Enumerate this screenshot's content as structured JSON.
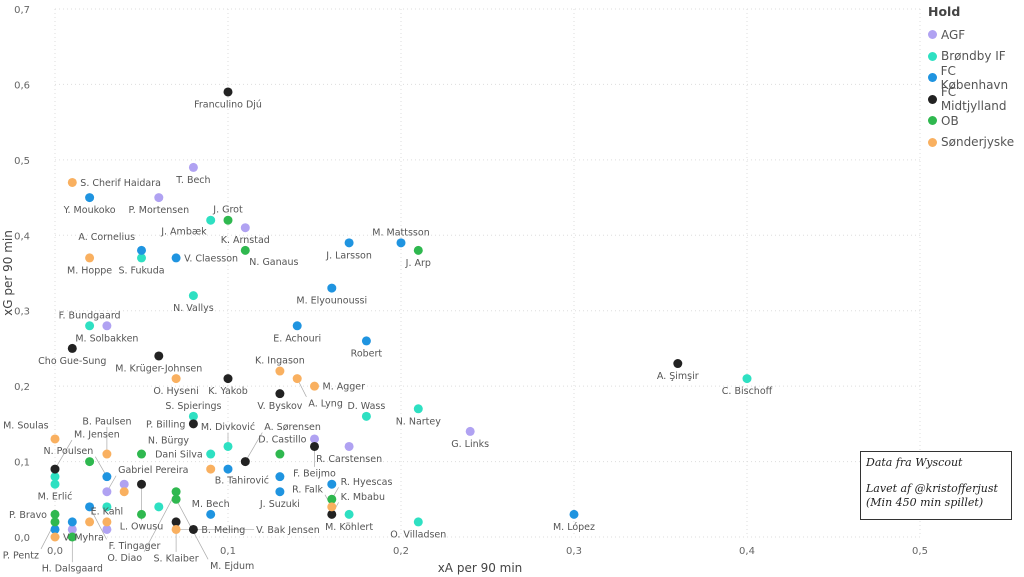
{
  "chart_data": {
    "type": "scatter",
    "xlabel": "xA per 90 min",
    "ylabel": "xG per 90 min",
    "xlim": [
      0,
      0.5
    ],
    "ylim": [
      0,
      0.7
    ],
    "xticks": [
      "0,0",
      "0,1",
      "0,2",
      "0,3",
      "0,4",
      "0,5"
    ],
    "yticks": [
      "0,0",
      "0,1",
      "0,2",
      "0,3",
      "0,4",
      "0,5",
      "0,6",
      "0,7"
    ],
    "grid": true,
    "legend": {
      "title": "Hold",
      "placement": "top-right"
    },
    "series": [
      {
        "name": "AGF",
        "color": "#b0a2f2",
        "points": [
          {
            "x": 0.08,
            "y": 0.49,
            "label": "T. Bech",
            "pos": "below"
          },
          {
            "x": 0.06,
            "y": 0.45,
            "label": "P. Mortensen",
            "pos": "below"
          },
          {
            "x": 0.11,
            "y": 0.41,
            "label": "K. Arnstad",
            "pos": "below"
          },
          {
            "x": 0.03,
            "y": 0.28,
            "label": "M. Solbakken",
            "pos": "below"
          },
          {
            "x": 0.15,
            "y": 0.13,
            "label": "D. Castillo",
            "pos": "left"
          },
          {
            "x": 0.17,
            "y": 0.12,
            "label": "R. Carstensen",
            "pos": "above"
          },
          {
            "x": 0.24,
            "y": 0.14,
            "label": "G. Links",
            "pos": "below"
          },
          {
            "x": 0.04,
            "y": 0.07,
            "label": "",
            "pos": "below"
          },
          {
            "x": 0.03,
            "y": 0.06,
            "label": "Gabriel Pereira",
            "pos": "right"
          },
          {
            "x": 0.01,
            "y": 0.01,
            "label": "",
            "pos": "below"
          },
          {
            "x": 0.03,
            "y": 0.01,
            "label": "",
            "pos": "below"
          }
        ]
      },
      {
        "name": "Brøndby IF",
        "color": "#2ee0c2",
        "points": [
          {
            "x": 0.09,
            "y": 0.42,
            "label": "J. Ambæk",
            "pos": "above"
          },
          {
            "x": 0.05,
            "y": 0.37,
            "label": "S. Fukuda",
            "pos": "below"
          },
          {
            "x": 0.08,
            "y": 0.32,
            "label": "N. Vallys",
            "pos": "below"
          },
          {
            "x": 0.02,
            "y": 0.28,
            "label": "F. Bundgaard",
            "pos": "above"
          },
          {
            "x": 0.08,
            "y": 0.16,
            "label": "S. Spierings",
            "pos": "above"
          },
          {
            "x": 0.1,
            "y": 0.12,
            "label": "M. Divković",
            "pos": "above"
          },
          {
            "x": 0.09,
            "y": 0.11,
            "label": "Dani Silva",
            "pos": "right"
          },
          {
            "x": 0.18,
            "y": 0.16,
            "label": "D. Wass",
            "pos": "above"
          },
          {
            "x": 0.21,
            "y": 0.17,
            "label": "N. Nartey",
            "pos": "below"
          },
          {
            "x": 0.4,
            "y": 0.21,
            "label": "C. Bischoff",
            "pos": "below"
          },
          {
            "x": 0.21,
            "y": 0.02,
            "label": "O. Villadsen",
            "pos": "below"
          },
          {
            "x": 0.17,
            "y": 0.03,
            "label": "M. Köhlert",
            "pos": "below"
          },
          {
            "x": 0.0,
            "y": 0.08,
            "label": "",
            "pos": "below"
          },
          {
            "x": 0.0,
            "y": 0.07,
            "label": "M. Erlić",
            "pos": "below"
          },
          {
            "x": 0.03,
            "y": 0.04,
            "label": "",
            "pos": "below"
          },
          {
            "x": 0.06,
            "y": 0.04,
            "label": "",
            "pos": "below"
          }
        ]
      },
      {
        "name": "FC København",
        "color": "#1f94e0",
        "points": [
          {
            "x": 0.02,
            "y": 0.45,
            "label": "Y. Moukoko",
            "pos": "below"
          },
          {
            "x": 0.05,
            "y": 0.38,
            "label": "A. Cornelius",
            "pos": "above"
          },
          {
            "x": 0.07,
            "y": 0.37,
            "label": "V. Claesson",
            "pos": "right"
          },
          {
            "x": 0.17,
            "y": 0.39,
            "label": "J. Larsson",
            "pos": "below"
          },
          {
            "x": 0.2,
            "y": 0.39,
            "label": "M. Mattsson",
            "pos": "above"
          },
          {
            "x": 0.16,
            "y": 0.33,
            "label": "M. Elyounoussi",
            "pos": "below"
          },
          {
            "x": 0.14,
            "y": 0.28,
            "label": "E. Achouri",
            "pos": "below"
          },
          {
            "x": 0.18,
            "y": 0.26,
            "label": "Robert",
            "pos": "below"
          },
          {
            "x": 0.1,
            "y": 0.09,
            "label": "",
            "pos": "below"
          },
          {
            "x": 0.03,
            "y": 0.08,
            "label": "N. Poulsen",
            "pos": "above"
          },
          {
            "x": 0.13,
            "y": 0.08,
            "label": "",
            "pos": "below"
          },
          {
            "x": 0.13,
            "y": 0.06,
            "label": "J. Suzuki",
            "pos": "above"
          },
          {
            "x": 0.16,
            "y": 0.07,
            "label": "",
            "pos": "below"
          },
          {
            "x": 0.09,
            "y": 0.03,
            "label": "M. Bech",
            "pos": "left"
          },
          {
            "x": 0.3,
            "y": 0.03,
            "label": "M. López",
            "pos": "below"
          },
          {
            "x": 0.02,
            "y": 0.04,
            "label": "F. Tingager",
            "pos": "right"
          },
          {
            "x": 0.01,
            "y": 0.02,
            "label": "",
            "pos": "below"
          },
          {
            "x": 0.0,
            "y": 0.01,
            "label": "",
            "pos": "below"
          }
        ]
      },
      {
        "name": "FC Midtjylland",
        "color": "#222222",
        "points": [
          {
            "x": 0.1,
            "y": 0.59,
            "label": "Franculino Djú",
            "pos": "below"
          },
          {
            "x": 0.01,
            "y": 0.25,
            "label": "Cho Gue-Sung",
            "pos": "below"
          },
          {
            "x": 0.06,
            "y": 0.24,
            "label": "M. Krüger-Johnsen",
            "pos": "above"
          },
          {
            "x": 0.1,
            "y": 0.21,
            "label": "K. Yakob",
            "pos": "below"
          },
          {
            "x": 0.13,
            "y": 0.19,
            "label": "V. Byskov",
            "pos": "below"
          },
          {
            "x": 0.36,
            "y": 0.23,
            "label": "A. Şimşir",
            "pos": "below"
          },
          {
            "x": 0.08,
            "y": 0.15,
            "label": "P. Billing",
            "pos": "left"
          },
          {
            "x": 0.11,
            "y": 0.1,
            "label": "A. Sørensen",
            "pos": "belowright"
          },
          {
            "x": 0.15,
            "y": 0.12,
            "label": "F. Beijmo",
            "pos": "below"
          },
          {
            "x": 0.0,
            "y": 0.09,
            "label": "M. Jensen",
            "pos": "belowright"
          },
          {
            "x": 0.05,
            "y": 0.07,
            "label": "L. Owusu",
            "pos": "above"
          },
          {
            "x": 0.07,
            "y": 0.02,
            "label": "S. Klaiber",
            "pos": "left"
          },
          {
            "x": 0.08,
            "y": 0.01,
            "label": "B. Meling",
            "pos": "right"
          },
          {
            "x": 0.16,
            "y": 0.03,
            "label": "K. Mbabu",
            "pos": "belowleft"
          }
        ]
      },
      {
        "name": "OB",
        "color": "#2fb84f",
        "points": [
          {
            "x": 0.1,
            "y": 0.42,
            "label": "J. Grot",
            "pos": "right"
          },
          {
            "x": 0.11,
            "y": 0.38,
            "label": "N. Ganaus",
            "pos": "below"
          },
          {
            "x": 0.21,
            "y": 0.38,
            "label": "J. Arp",
            "pos": "below"
          },
          {
            "x": 0.05,
            "y": 0.11,
            "label": "N. Bürgy",
            "pos": "above"
          },
          {
            "x": 0.02,
            "y": 0.1,
            "label": "",
            "pos": "below"
          },
          {
            "x": 0.13,
            "y": 0.11,
            "label": "",
            "pos": "below"
          },
          {
            "x": 0.07,
            "y": 0.06,
            "label": "O. Diao",
            "pos": "left"
          },
          {
            "x": 0.07,
            "y": 0.05,
            "label": "M. Ejdum",
            "pos": "right"
          },
          {
            "x": 0.16,
            "y": 0.05,
            "label": "R. Hyescas",
            "pos": "above"
          },
          {
            "x": 0.05,
            "y": 0.03,
            "label": "",
            "pos": "below"
          },
          {
            "x": 0.0,
            "y": 0.03,
            "label": "P. Bravo",
            "pos": "above"
          },
          {
            "x": 0.0,
            "y": 0.02,
            "label": "P. Pentz",
            "pos": "below"
          },
          {
            "x": 0.01,
            "y": 0.0,
            "label": "H. Dalsgaard",
            "pos": "right"
          }
        ]
      },
      {
        "name": "Sønderjyske",
        "color": "#f9b060",
        "points": [
          {
            "x": 0.01,
            "y": 0.47,
            "label": "S. Cherif Haidara",
            "pos": "right"
          },
          {
            "x": 0.02,
            "y": 0.37,
            "label": "M. Hoppe",
            "pos": "below"
          },
          {
            "x": 0.07,
            "y": 0.21,
            "label": "O. Hyseni",
            "pos": "below"
          },
          {
            "x": 0.13,
            "y": 0.22,
            "label": "K. Ingason",
            "pos": "right"
          },
          {
            "x": 0.14,
            "y": 0.21,
            "label": "A. Lyng",
            "pos": "belowleft"
          },
          {
            "x": 0.15,
            "y": 0.2,
            "label": "M. Agger",
            "pos": "right"
          },
          {
            "x": 0.0,
            "y": 0.13,
            "label": "M. Soulas",
            "pos": "aboveright"
          },
          {
            "x": 0.03,
            "y": 0.11,
            "label": "B. Paulsen",
            "pos": "left"
          },
          {
            "x": 0.09,
            "y": 0.09,
            "label": "B. Tahirović",
            "pos": "above"
          },
          {
            "x": 0.04,
            "y": 0.06,
            "label": "",
            "pos": "below"
          },
          {
            "x": 0.02,
            "y": 0.02,
            "label": "",
            "pos": "below"
          },
          {
            "x": 0.03,
            "y": 0.02,
            "label": "E. Kahl",
            "pos": "right"
          },
          {
            "x": 0.16,
            "y": 0.04,
            "label": "R. Falk",
            "pos": "below"
          },
          {
            "x": 0.07,
            "y": 0.01,
            "label": "V. Bak Jensen",
            "pos": "belowleft"
          },
          {
            "x": 0.0,
            "y": 0.0,
            "label": "V. Myhra",
            "pos": "right"
          }
        ]
      }
    ]
  },
  "note": {
    "line1": "Data fra Wyscout",
    "line2": "Lavet af @kristofferjust",
    "line3": "(Min 450 min spillet)"
  }
}
